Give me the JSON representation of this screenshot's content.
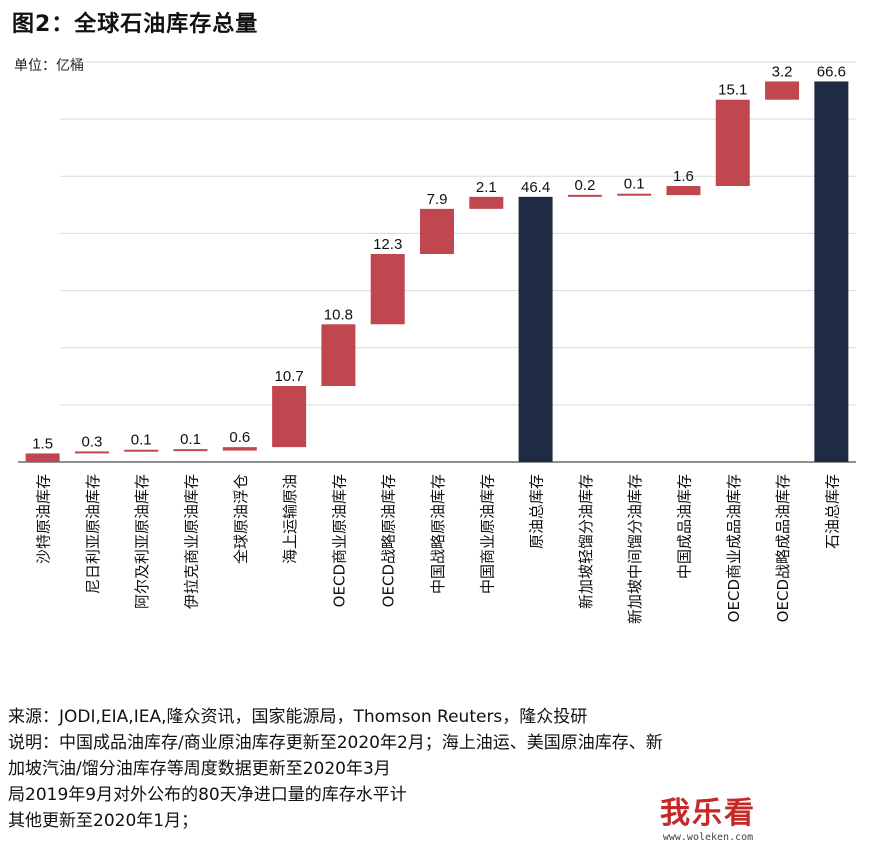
{
  "title": "图2：全球石油库存总量",
  "unit_label": "单位：亿桶",
  "colors": {
    "increment": "#c0474f",
    "total": "#1f2a44",
    "grid": "#d9d9d9",
    "axis": "#222222"
  },
  "chart_data": {
    "type": "waterfall",
    "title": "图2：全球石油库存总量",
    "ylabel": "单位：亿桶",
    "ylim": [
      0,
      70
    ],
    "grid": true,
    "categories": [
      "沙特原油库存",
      "尼日利亚原油库存",
      "阿尔及利亚原油库存",
      "伊拉克商业原油库存",
      "全球原油浮仓",
      "海上运输原油",
      "OECD商业原油库存",
      "OECD战略原油库存",
      "中国战略原油库存",
      "中国商业原油库存",
      "原油总库存",
      "新加坡轻馏分油库存",
      "新加坡中间馏分油库存",
      "中国成品油库存",
      "OECD商业成品油库存",
      "OECD战略成品油库存",
      "石油总库存"
    ],
    "values": [
      1.5,
      0.3,
      0.1,
      0.1,
      0.6,
      10.7,
      10.8,
      12.3,
      7.9,
      2.1,
      46.4,
      0.2,
      0.1,
      1.6,
      15.1,
      3.2,
      66.6
    ],
    "value_labels": [
      "1.5",
      "0.3",
      "0.1",
      "0.1",
      "0.6",
      "10.7",
      "10.8",
      "12.3",
      "7.9",
      "2.1",
      "46.4",
      "0.2",
      "0.1",
      "1.6",
      "15.1",
      "3.2",
      "66.6"
    ],
    "is_total": [
      false,
      false,
      false,
      false,
      false,
      false,
      false,
      false,
      false,
      false,
      true,
      false,
      false,
      false,
      false,
      false,
      true
    ]
  },
  "notes": {
    "source": "来源：JODI,EIA,IEA,隆众资讯，国家能源局，Thomson Reuters，隆众投研",
    "line1": "说明：中国成品油库存/商业原油库存更新至2020年2月；海上油运、美国原油库存、新",
    "line2": "加坡汽油/馏分油库存等周度数据更新至2020年3月",
    "line3": "局2019年9月对外公布的80天净进口量的库存水平计",
    "line4": "其他更新至2020年1月；"
  },
  "watermark": {
    "main": "我乐看",
    "sub": "www.woleken.com"
  }
}
